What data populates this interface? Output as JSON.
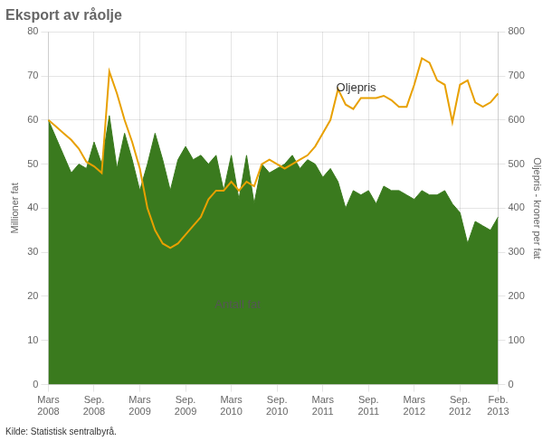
{
  "chart_data": {
    "type": "area",
    "title": "Eksport av råolje",
    "ylabel": "Millioner fat",
    "y2label": "Oljepris - kroner per fat",
    "source": "Kilde: Statistisk sentralbyrå.",
    "annotations": [
      "Antall fat",
      "Oljepris"
    ],
    "categories": [
      "Mars\n2008",
      null,
      null,
      null,
      null,
      null,
      "Sep.\n2008",
      null,
      null,
      null,
      null,
      null,
      "Mars\n2009",
      null,
      null,
      null,
      null,
      null,
      "Sep.\n2009",
      null,
      null,
      null,
      null,
      null,
      "Mars\n2010",
      null,
      null,
      null,
      null,
      null,
      "Sep.\n2010",
      null,
      null,
      null,
      null,
      null,
      "Mars\n2011",
      null,
      null,
      null,
      null,
      null,
      "Sep.\n2011",
      null,
      null,
      null,
      null,
      null,
      "Mars\n2012",
      null,
      null,
      null,
      null,
      null,
      "Sep.\n2012",
      null,
      null,
      null,
      null,
      "Feb.\n2013"
    ],
    "series": [
      {
        "name": "Antall fat",
        "type": "area",
        "color": "#3a7a1e",
        "values": [
          60,
          56,
          52,
          48,
          50,
          49,
          55,
          50,
          61,
          49,
          57,
          51,
          44,
          50,
          57,
          51,
          44,
          51,
          54,
          51,
          52,
          50,
          52,
          44,
          52,
          42,
          52,
          41,
          50,
          48,
          49,
          50,
          52,
          49,
          51,
          50,
          47,
          49,
          46,
          40,
          44,
          43,
          44,
          41,
          45,
          44,
          44,
          43,
          42,
          44,
          43,
          43,
          44,
          41,
          39,
          32,
          37,
          36,
          35,
          38
        ]
      },
      {
        "name": "Oljepris",
        "type": "line",
        "axis": "y2",
        "color": "#e8a000",
        "values": [
          600,
          585,
          570,
          555,
          535,
          505,
          495,
          480,
          710,
          660,
          600,
          550,
          490,
          400,
          350,
          320,
          310,
          320,
          340,
          360,
          380,
          420,
          440,
          440,
          460,
          440,
          460,
          450,
          500,
          510,
          500,
          490,
          500,
          510,
          520,
          540,
          570,
          600,
          670,
          635,
          625,
          650,
          650,
          650,
          655,
          645,
          630,
          630,
          680,
          740,
          730,
          690,
          680,
          595,
          680,
          690,
          640,
          630,
          640,
          660
        ]
      }
    ],
    "ylim": [
      0,
      80
    ],
    "yticks": [
      0,
      10,
      20,
      30,
      40,
      50,
      60,
      70,
      80
    ],
    "y2lim": [
      0,
      800
    ],
    "y2ticks": [
      0,
      100,
      200,
      300,
      400,
      500,
      600,
      700,
      800
    ],
    "grid": true,
    "legend": false
  }
}
